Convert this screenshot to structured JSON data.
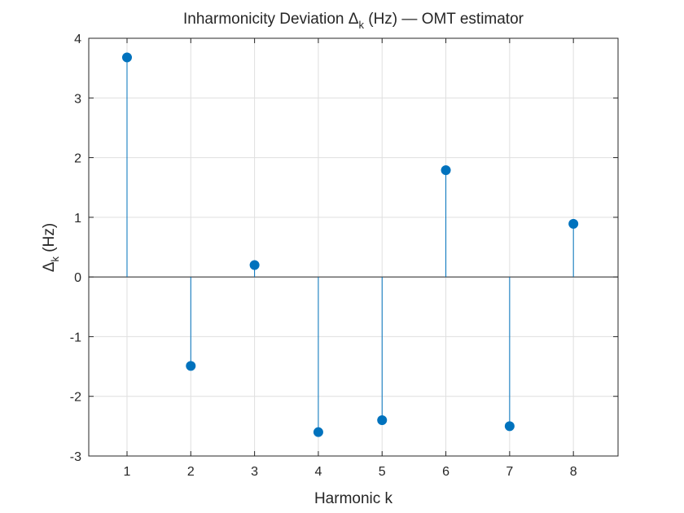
{
  "chart_data": {
    "type": "stem",
    "title": {
      "prefix": "Inharmonicity Deviation ",
      "symbol": "Δ",
      "subscript": "k",
      "suffix": " (Hz) — OMT estimator"
    },
    "xlabel": "Harmonic k",
    "ylabel": {
      "symbol": "Δ",
      "subscript": "k",
      "suffix": " (Hz)"
    },
    "x": [
      1,
      2,
      3,
      4,
      5,
      6,
      7,
      8
    ],
    "y": [
      3.68,
      -1.49,
      0.2,
      -2.6,
      -2.4,
      1.79,
      -2.5,
      0.89
    ],
    "xlim": [
      0.4,
      8.7
    ],
    "ylim": [
      -3,
      4
    ],
    "xticks": [
      1,
      2,
      3,
      4,
      5,
      6,
      7,
      8
    ],
    "yticks": [
      -3,
      -2,
      -1,
      0,
      1,
      2,
      3,
      4
    ],
    "baseline": 0,
    "grid": true,
    "color": "#0072BD"
  }
}
